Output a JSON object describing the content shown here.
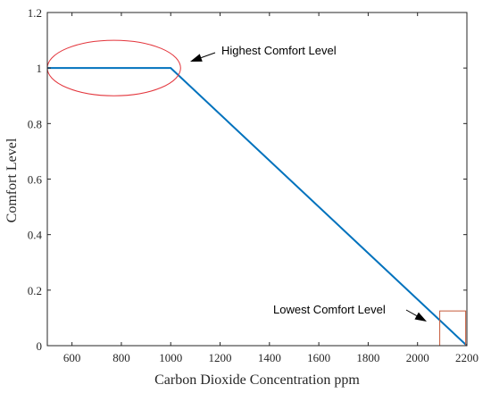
{
  "chart_data": {
    "type": "line",
    "title": "",
    "xlabel": "Carbon Dioxide Concentration ppm",
    "ylabel": "Comfort Level",
    "xlim": [
      500,
      2200
    ],
    "ylim": [
      0,
      1.2
    ],
    "x_ticks": [
      600,
      800,
      1000,
      1200,
      1400,
      1600,
      1800,
      2000,
      2200
    ],
    "y_ticks": [
      0,
      0.2,
      0.4,
      0.6,
      0.8,
      1,
      1.2
    ],
    "x_tick_labels": [
      "600",
      "800",
      "1000",
      "1200",
      "1400",
      "1600",
      "1800",
      "2000",
      "2200"
    ],
    "y_tick_labels": [
      "0",
      "0.2",
      "0.4",
      "0.6",
      "0.8",
      "1",
      "1.2"
    ],
    "grid": false,
    "series": [
      {
        "x": [
          500,
          1000,
          2200
        ],
        "y": [
          1,
          1,
          0
        ],
        "color": "#0072BD"
      }
    ],
    "annotations": [
      {
        "text": "Highest Comfort Level",
        "marker": "ellipse",
        "center": [
          770,
          1
        ],
        "radius": [
          270,
          0.1
        ],
        "color": "#E3343B"
      },
      {
        "text": "Lowest Comfort Level",
        "marker": "box",
        "from": [
          2090,
          0
        ],
        "to": [
          2195,
          0.125
        ],
        "color": "#C65A3A"
      }
    ]
  }
}
